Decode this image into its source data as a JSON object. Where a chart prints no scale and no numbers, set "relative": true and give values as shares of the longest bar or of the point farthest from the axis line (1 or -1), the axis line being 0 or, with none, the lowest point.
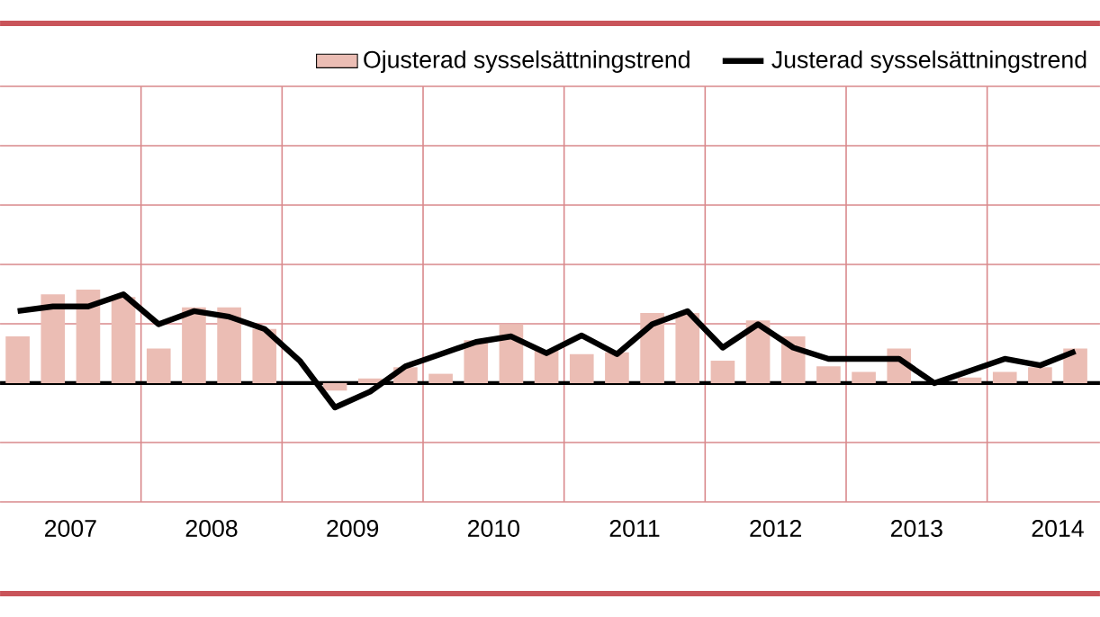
{
  "chart_data": {
    "type": "bar",
    "relative": true,
    "x": [
      2007.125,
      2007.375,
      2007.625,
      2007.875,
      2008.125,
      2008.375,
      2008.625,
      2008.875,
      2009.125,
      2009.375,
      2009.625,
      2009.875,
      2010.125,
      2010.375,
      2010.625,
      2010.875,
      2011.125,
      2011.375,
      2011.625,
      2011.875,
      2012.125,
      2012.375,
      2012.625,
      2012.875,
      2013.125,
      2013.375,
      2013.625,
      2013.875,
      2014.125,
      2014.375,
      2014.625
    ],
    "xlim": [
      2007.0,
      2014.8
    ],
    "xticks": [
      {
        "value": 2008,
        "label": null
      },
      {
        "value": 2009,
        "label": null
      },
      {
        "value": 2010,
        "label": null
      },
      {
        "value": 2011,
        "label": null
      },
      {
        "value": 2012,
        "label": null
      },
      {
        "value": 2013,
        "label": null
      },
      {
        "value": 2014,
        "label": null
      },
      {
        "value": 2007.5,
        "label": "2007"
      },
      {
        "value": 2008.5,
        "label": "2008"
      },
      {
        "value": 2009.5,
        "label": "2009"
      },
      {
        "value": 2010.5,
        "label": "2010"
      },
      {
        "value": 2011.5,
        "label": "2011"
      },
      {
        "value": 2012.5,
        "label": "2012"
      },
      {
        "value": 2013.5,
        "label": "2013"
      },
      {
        "value": 2014.5,
        "label": "2014"
      }
    ],
    "series": [
      {
        "name": "Ojusterad sysselsättningstrend",
        "color": "#ebbdb4",
        "values": [
          0.5,
          0.95,
          1.0,
          0.92,
          0.37,
          0.81,
          0.81,
          0.58,
          0.0,
          -0.08,
          0.05,
          0.17,
          0.1,
          0.46,
          0.63,
          0.35,
          0.31,
          0.33,
          0.75,
          0.75,
          0.24,
          0.67,
          0.5,
          0.18,
          0.12,
          0.37,
          0.0,
          0.06,
          0.12,
          0.17,
          0.37
        ]
      },
      {
        "name": "Justerad sysselsättningstrend",
        "type": "line",
        "color": "#000000",
        "values": [
          0.77,
          0.82,
          0.82,
          0.95,
          0.63,
          0.77,
          0.71,
          0.58,
          0.24,
          -0.26,
          -0.09,
          0.18,
          0.31,
          0.44,
          0.5,
          0.32,
          0.51,
          0.31,
          0.63,
          0.77,
          0.38,
          0.63,
          0.38,
          0.26,
          0.26,
          0.26,
          0.0,
          0.13,
          0.26,
          0.19,
          0.34
        ]
      }
    ],
    "grid": true,
    "legend": "top right"
  }
}
